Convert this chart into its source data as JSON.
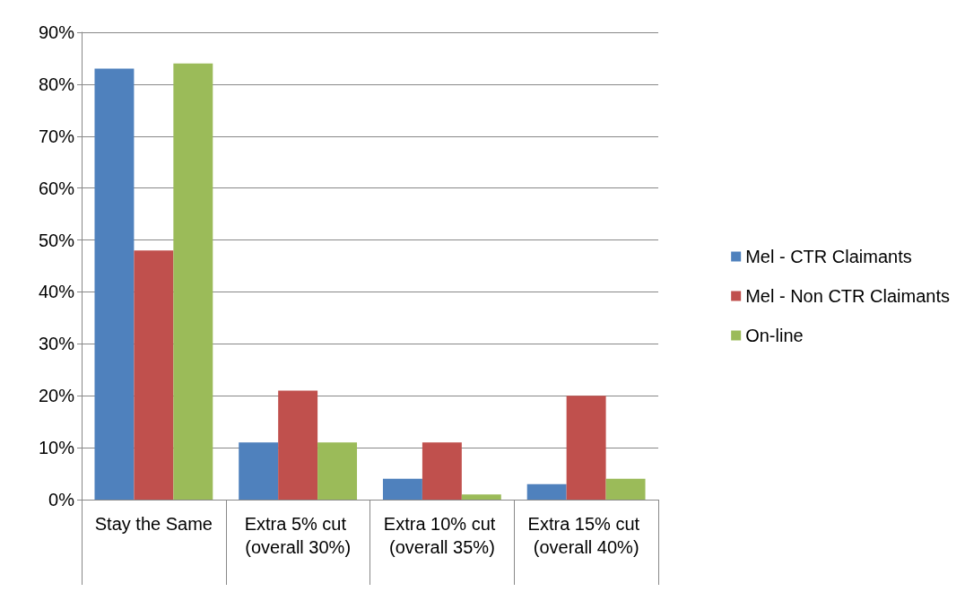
{
  "chart_data": {
    "type": "bar",
    "categories": [
      "Stay the Same",
      "Extra 5% cut (overall 30%)",
      "Extra 10% cut (overall 35%)",
      "Extra 15% cut (overall 40%)"
    ],
    "series": [
      {
        "name": "Mel - CTR Claimants",
        "color": "#4f81bd",
        "values": [
          83,
          11,
          4,
          3
        ]
      },
      {
        "name": "Mel - Non CTR Claimants",
        "color": "#c0504d",
        "values": [
          48,
          21,
          11,
          20
        ]
      },
      {
        "name": "On-line",
        "color": "#9bbb59",
        "values": [
          84,
          11,
          1,
          4
        ]
      }
    ],
    "ylim": [
      0,
      90
    ],
    "yticks": [
      {
        "value": 0,
        "label": "0%"
      },
      {
        "value": 10,
        "label": "10%"
      },
      {
        "value": 20,
        "label": "20%"
      },
      {
        "value": 30,
        "label": "30%"
      },
      {
        "value": 40,
        "label": "40%"
      },
      {
        "value": 50,
        "label": "50%"
      },
      {
        "value": 60,
        "label": "60%"
      },
      {
        "value": 70,
        "label": "70%"
      },
      {
        "value": 80,
        "label": "80%"
      },
      {
        "value": 90,
        "label": "90%"
      }
    ],
    "grid": "y",
    "legend": "right"
  }
}
